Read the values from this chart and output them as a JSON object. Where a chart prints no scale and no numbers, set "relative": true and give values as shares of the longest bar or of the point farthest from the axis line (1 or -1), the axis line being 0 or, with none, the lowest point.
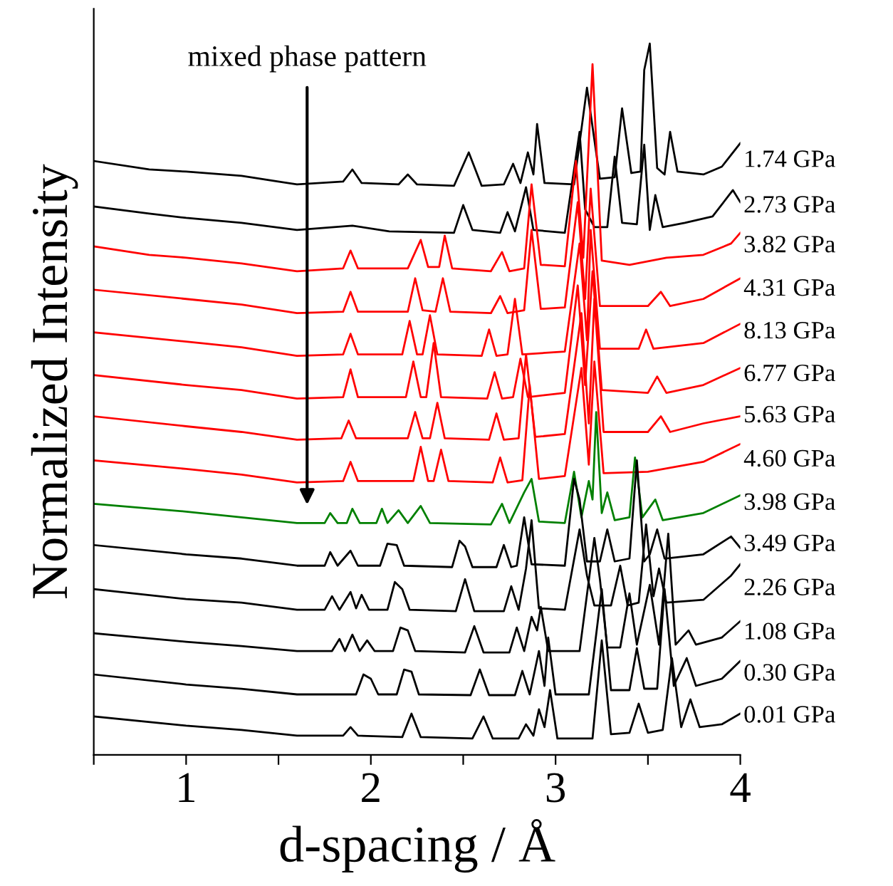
{
  "chart_data": {
    "type": "line",
    "relative": true,
    "xlabel": "d-spacing / Å",
    "ylabel": "Normalized Intensity",
    "xlim": [
      0.5,
      4
    ],
    "xticks": [
      {
        "value": 0.5,
        "label": null
      },
      1,
      {
        "value": 1.5,
        "label": null
      },
      2,
      {
        "value": 2.5,
        "label": null
      },
      3,
      {
        "value": 3.5,
        "label": null
      },
      4
    ],
    "grid": false,
    "legend": false,
    "marker": "none",
    "line_style": "solid",
    "annotations": [
      "mixed phase pattern"
    ],
    "series": [
      {
        "name": "1.74 GPa",
        "color": "#000000",
        "x": [
          0.5,
          0.8,
          1.0,
          1.3,
          1.6,
          1.85,
          1.9,
          1.95,
          2.15,
          2.2,
          2.25,
          2.45,
          2.53,
          2.6,
          2.72,
          2.77,
          2.81,
          2.85,
          2.88,
          2.9,
          2.94,
          3.1,
          3.17,
          3.24,
          3.32,
          3.36,
          3.41,
          3.46,
          3.48,
          3.51,
          3.55,
          3.59,
          3.62,
          3.66,
          3.8,
          3.9,
          4.0
        ],
        "values": [
          0.835,
          0.823,
          0.82,
          0.814,
          0.802,
          0.806,
          0.823,
          0.804,
          0.802,
          0.816,
          0.802,
          0.8,
          0.847,
          0.8,
          0.802,
          0.831,
          0.804,
          0.847,
          0.816,
          0.887,
          0.804,
          0.802,
          0.938,
          0.81,
          0.812,
          0.909,
          0.818,
          0.82,
          0.963,
          1.0,
          0.825,
          0.816,
          0.876,
          0.82,
          0.816,
          0.827,
          0.86
        ]
      },
      {
        "name": "2.73 GPa",
        "color": "#000000",
        "x": [
          0.5,
          0.8,
          1.0,
          1.3,
          1.6,
          1.9,
          2.1,
          2.45,
          2.5,
          2.55,
          2.7,
          2.74,
          2.78,
          2.84,
          2.88,
          3.05,
          3.13,
          3.16,
          3.21,
          3.28,
          3.32,
          3.36,
          3.44,
          3.48,
          3.51,
          3.54,
          3.58,
          3.7,
          3.85,
          3.96,
          4.0
        ],
        "values": [
          0.771,
          0.761,
          0.755,
          0.748,
          0.738,
          0.744,
          0.736,
          0.734,
          0.773,
          0.738,
          0.734,
          0.763,
          0.736,
          0.798,
          0.738,
          0.734,
          0.876,
          0.767,
          0.742,
          0.742,
          0.841,
          0.748,
          0.746,
          0.858,
          0.738,
          0.787,
          0.742,
          0.748,
          0.757,
          0.794,
          0.777
        ]
      },
      {
        "name": "3.82 GPa",
        "color": "#ff0000",
        "x": [
          0.5,
          0.8,
          1.0,
          1.3,
          1.6,
          1.85,
          1.89,
          1.93,
          2.2,
          2.27,
          2.31,
          2.37,
          2.4,
          2.44,
          2.65,
          2.71,
          2.75,
          2.83,
          2.87,
          2.92,
          3.05,
          3.11,
          3.15,
          3.2,
          3.25,
          3.4,
          3.6,
          3.8,
          3.95,
          4.0
        ],
        "values": [
          0.715,
          0.703,
          0.699,
          0.691,
          0.68,
          0.684,
          0.709,
          0.684,
          0.684,
          0.724,
          0.686,
          0.686,
          0.73,
          0.684,
          0.68,
          0.707,
          0.68,
          0.684,
          0.802,
          0.689,
          0.687,
          0.835,
          0.699,
          0.971,
          0.695,
          0.689,
          0.699,
          0.703,
          0.719,
          0.734
        ]
      },
      {
        "name": "4.31 GPa",
        "color": "#ff0000",
        "x": [
          0.5,
          1.0,
          1.3,
          1.6,
          1.85,
          1.89,
          1.93,
          2.2,
          2.24,
          2.28,
          2.35,
          2.39,
          2.43,
          2.65,
          2.7,
          2.74,
          2.83,
          2.87,
          2.92,
          3.05,
          3.12,
          3.16,
          3.19,
          3.24,
          3.5,
          3.57,
          3.62,
          3.8,
          4.0
        ],
        "values": [
          0.654,
          0.641,
          0.633,
          0.621,
          0.623,
          0.651,
          0.623,
          0.623,
          0.67,
          0.625,
          0.623,
          0.67,
          0.623,
          0.621,
          0.645,
          0.621,
          0.625,
          0.738,
          0.627,
          0.629,
          0.777,
          0.641,
          0.796,
          0.631,
          0.631,
          0.651,
          0.631,
          0.641,
          0.67
        ]
      },
      {
        "name": "8.13 GPa",
        "color": "#ff0000",
        "x": [
          0.5,
          1.0,
          1.3,
          1.6,
          1.85,
          1.89,
          1.93,
          2.17,
          2.21,
          2.25,
          2.28,
          2.32,
          2.36,
          2.6,
          2.64,
          2.68,
          2.74,
          2.78,
          2.82,
          3.05,
          3.13,
          3.17,
          3.19,
          3.24,
          3.45,
          3.49,
          3.53,
          3.8,
          4.0
        ],
        "values": [
          0.594,
          0.581,
          0.573,
          0.561,
          0.563,
          0.592,
          0.563,
          0.563,
          0.61,
          0.563,
          0.563,
          0.618,
          0.563,
          0.561,
          0.598,
          0.561,
          0.563,
          0.641,
          0.563,
          0.567,
          0.719,
          0.583,
          0.738,
          0.571,
          0.571,
          0.598,
          0.571,
          0.579,
          0.606
        ]
      },
      {
        "name": "6.77 GPa",
        "color": "#ff0000",
        "x": [
          0.5,
          1.0,
          1.3,
          1.6,
          1.85,
          1.89,
          1.93,
          2.19,
          2.23,
          2.27,
          2.3,
          2.34,
          2.38,
          2.63,
          2.67,
          2.71,
          2.77,
          2.81,
          2.85,
          3.05,
          3.12,
          3.16,
          3.2,
          3.25,
          3.5,
          3.55,
          3.6,
          3.8,
          4.0
        ],
        "values": [
          0.534,
          0.52,
          0.513,
          0.501,
          0.503,
          0.542,
          0.503,
          0.503,
          0.553,
          0.503,
          0.503,
          0.579,
          0.503,
          0.501,
          0.538,
          0.501,
          0.503,
          0.557,
          0.503,
          0.509,
          0.66,
          0.52,
          0.68,
          0.513,
          0.509,
          0.532,
          0.509,
          0.52,
          0.544
        ]
      },
      {
        "name": "5.63 GPa",
        "color": "#ff0000",
        "x": [
          0.5,
          1.0,
          1.3,
          1.6,
          1.84,
          1.88,
          1.92,
          2.2,
          2.24,
          2.28,
          2.32,
          2.36,
          2.4,
          2.64,
          2.68,
          2.72,
          2.8,
          2.84,
          2.89,
          3.05,
          3.14,
          3.18,
          3.21,
          3.26,
          3.5,
          3.57,
          3.62,
          3.8,
          4.0
        ],
        "values": [
          0.476,
          0.462,
          0.454,
          0.443,
          0.445,
          0.47,
          0.445,
          0.445,
          0.482,
          0.445,
          0.445,
          0.495,
          0.445,
          0.443,
          0.48,
          0.443,
          0.445,
          0.563,
          0.447,
          0.451,
          0.621,
          0.466,
          0.641,
          0.454,
          0.454,
          0.476,
          0.454,
          0.466,
          0.476
        ]
      },
      {
        "name": "4.60 GPa",
        "color": "#ff0000",
        "x": [
          0.5,
          1.0,
          1.3,
          1.6,
          1.85,
          1.89,
          1.93,
          2.23,
          2.27,
          2.31,
          2.34,
          2.38,
          2.42,
          2.66,
          2.7,
          2.74,
          2.82,
          2.86,
          2.91,
          3.05,
          3.14,
          3.18,
          3.21,
          3.26,
          3.5,
          3.8,
          4.0
        ],
        "values": [
          0.414,
          0.402,
          0.394,
          0.383,
          0.385,
          0.412,
          0.385,
          0.385,
          0.433,
          0.385,
          0.385,
          0.429,
          0.385,
          0.383,
          0.418,
          0.383,
          0.386,
          0.52,
          0.388,
          0.392,
          0.544,
          0.408,
          0.553,
          0.396,
          0.398,
          0.412,
          0.437
        ]
      },
      {
        "name": "3.98 GPa",
        "color": "#008000",
        "x": [
          0.5,
          1.0,
          1.3,
          1.6,
          1.75,
          1.78,
          1.82,
          1.87,
          1.9,
          1.94,
          2.03,
          2.06,
          2.09,
          2.15,
          2.2,
          2.27,
          2.32,
          2.65,
          2.71,
          2.75,
          2.83,
          2.87,
          2.91,
          3.05,
          3.1,
          3.14,
          3.18,
          3.2,
          3.22,
          3.25,
          3.28,
          3.32,
          3.4,
          3.43,
          3.47,
          3.54,
          3.58,
          3.8,
          4.0
        ],
        "values": [
          0.353,
          0.342,
          0.334,
          0.326,
          0.326,
          0.34,
          0.326,
          0.326,
          0.346,
          0.326,
          0.326,
          0.346,
          0.326,
          0.344,
          0.326,
          0.35,
          0.326,
          0.324,
          0.353,
          0.326,
          0.369,
          0.388,
          0.328,
          0.326,
          0.398,
          0.334,
          0.385,
          0.359,
          0.482,
          0.34,
          0.369,
          0.33,
          0.334,
          0.418,
          0.334,
          0.359,
          0.33,
          0.34,
          0.365
        ]
      },
      {
        "name": "3.49 GPa",
        "color": "#000000",
        "x": [
          0.5,
          1.0,
          1.3,
          1.6,
          1.75,
          1.78,
          1.82,
          1.89,
          1.93,
          2.05,
          2.09,
          2.14,
          2.18,
          2.44,
          2.48,
          2.51,
          2.55,
          2.68,
          2.72,
          2.76,
          2.79,
          2.83,
          2.87,
          3.05,
          3.1,
          3.13,
          3.17,
          3.24,
          3.28,
          3.32,
          3.4,
          3.44,
          3.48,
          3.51,
          3.55,
          3.59,
          3.8,
          3.95,
          4.0
        ],
        "values": [
          0.295,
          0.282,
          0.276,
          0.266,
          0.266,
          0.285,
          0.266,
          0.287,
          0.266,
          0.266,
          0.297,
          0.295,
          0.266,
          0.264,
          0.301,
          0.293,
          0.264,
          0.264,
          0.295,
          0.264,
          0.266,
          0.334,
          0.268,
          0.266,
          0.388,
          0.359,
          0.272,
          0.272,
          0.317,
          0.272,
          0.276,
          0.414,
          0.272,
          0.282,
          0.317,
          0.276,
          0.282,
          0.307,
          0.291
        ]
      },
      {
        "name": "2.26 GPa",
        "color": "#000000",
        "x": [
          0.5,
          1.0,
          1.3,
          1.6,
          1.75,
          1.79,
          1.83,
          1.89,
          1.92,
          1.95,
          1.99,
          2.09,
          2.13,
          2.17,
          2.21,
          2.46,
          2.51,
          2.56,
          2.72,
          2.76,
          2.8,
          2.84,
          2.87,
          2.91,
          3.05,
          3.13,
          3.17,
          3.21,
          3.3,
          3.35,
          3.39,
          3.45,
          3.49,
          3.53,
          3.56,
          3.6,
          3.8,
          3.95,
          4.0
        ],
        "values": [
          0.233,
          0.219,
          0.214,
          0.204,
          0.204,
          0.223,
          0.204,
          0.229,
          0.206,
          0.225,
          0.204,
          0.204,
          0.243,
          0.233,
          0.204,
          0.202,
          0.247,
          0.202,
          0.202,
          0.237,
          0.204,
          0.262,
          0.33,
          0.206,
          0.204,
          0.317,
          0.252,
          0.21,
          0.21,
          0.266,
          0.21,
          0.214,
          0.324,
          0.223,
          0.262,
          0.214,
          0.218,
          0.252,
          0.268
        ]
      },
      {
        "name": "1.08 GPa",
        "color": "#000000",
        "x": [
          0.5,
          1.0,
          1.3,
          1.6,
          1.79,
          1.83,
          1.86,
          1.9,
          1.94,
          1.98,
          2.02,
          2.12,
          2.16,
          2.2,
          2.24,
          2.51,
          2.56,
          2.61,
          2.75,
          2.79,
          2.83,
          2.87,
          2.9,
          2.92,
          2.96,
          3.13,
          3.21,
          3.24,
          3.28,
          3.35,
          3.4,
          3.44,
          3.51,
          3.56,
          3.61,
          3.65,
          3.72,
          3.76,
          3.9,
          4.0
        ],
        "values": [
          0.171,
          0.159,
          0.153,
          0.146,
          0.146,
          0.163,
          0.146,
          0.169,
          0.146,
          0.161,
          0.146,
          0.146,
          0.179,
          0.175,
          0.146,
          0.144,
          0.181,
          0.144,
          0.144,
          0.179,
          0.146,
          0.194,
          0.175,
          0.208,
          0.146,
          0.146,
          0.305,
          0.247,
          0.151,
          0.151,
          0.227,
          0.155,
          0.239,
          0.155,
          0.311,
          0.155,
          0.175,
          0.155,
          0.165,
          0.188
        ]
      },
      {
        "name": "0.30 GPa",
        "color": "#000000",
        "x": [
          0.5,
          1.0,
          1.3,
          1.6,
          1.92,
          1.96,
          2.0,
          2.04,
          2.14,
          2.18,
          2.22,
          2.26,
          2.54,
          2.59,
          2.64,
          2.78,
          2.82,
          2.86,
          2.91,
          2.94,
          2.96,
          3.0,
          3.18,
          3.25,
          3.3,
          3.4,
          3.44,
          3.48,
          3.55,
          3.59,
          3.64,
          3.71,
          3.76,
          3.9,
          4.0
        ],
        "values": [
          0.113,
          0.099,
          0.093,
          0.085,
          0.085,
          0.113,
          0.107,
          0.085,
          0.085,
          0.12,
          0.117,
          0.085,
          0.084,
          0.12,
          0.084,
          0.084,
          0.118,
          0.085,
          0.146,
          0.097,
          0.165,
          0.085,
          0.085,
          0.233,
          0.091,
          0.091,
          0.15,
          0.093,
          0.093,
          0.233,
          0.097,
          0.136,
          0.097,
          0.107,
          0.132
        ]
      },
      {
        "name": "0.01 GPa",
        "color": "#000000",
        "x": [
          0.5,
          1.0,
          1.3,
          1.6,
          1.85,
          1.89,
          1.93,
          2.17,
          2.22,
          2.27,
          2.55,
          2.61,
          2.66,
          2.8,
          2.84,
          2.88,
          2.91,
          2.94,
          2.97,
          3.01,
          3.2,
          3.25,
          3.3,
          3.4,
          3.45,
          3.5,
          3.58,
          3.63,
          3.68,
          3.73,
          3.78,
          3.9,
          4.0
        ],
        "values": [
          0.054,
          0.041,
          0.035,
          0.027,
          0.027,
          0.039,
          0.027,
          0.025,
          0.058,
          0.025,
          0.023,
          0.054,
          0.023,
          0.023,
          0.043,
          0.027,
          0.064,
          0.039,
          0.091,
          0.023,
          0.023,
          0.161,
          0.029,
          0.031,
          0.072,
          0.031,
          0.035,
          0.136,
          0.039,
          0.078,
          0.039,
          0.043,
          0.058
        ]
      }
    ]
  }
}
